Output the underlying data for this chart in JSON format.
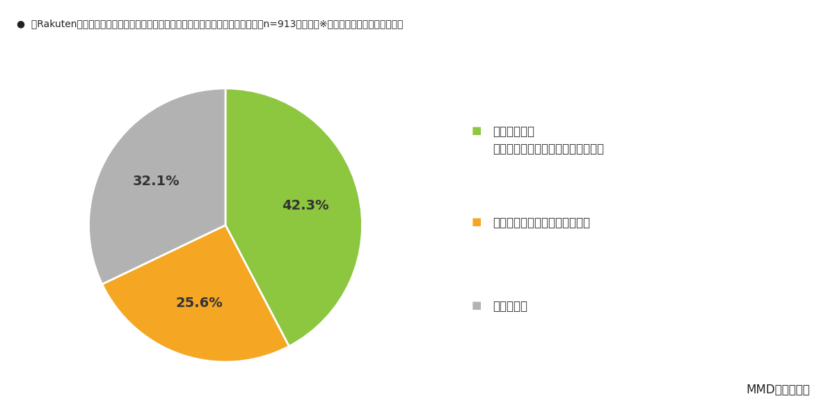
{
  "title": "「Rakuten最強プラン」発表が楽天モバイルへの乗り換え意向に影響があったか（n=913、単数）※楽天モバイル乗り換え検討者",
  "values": [
    42.3,
    25.6,
    32.1
  ],
  "labels": [
    "42.3%",
    "25.6%",
    "32.1%"
  ],
  "colors": [
    "#8dc63f",
    "#f5a623",
    "#b2b2b2"
  ],
  "legend_labels": [
    "発表を受けて\n楽天モバイルに乗り換えたくなった",
    "発表前から乗り換え予定だった",
    "分からない"
  ],
  "legend_colors": [
    "#8dc63f",
    "#f5a623",
    "#b2b2b2"
  ],
  "source": "MMD研究所調べ",
  "background_color": "#ffffff",
  "startangle": 90
}
